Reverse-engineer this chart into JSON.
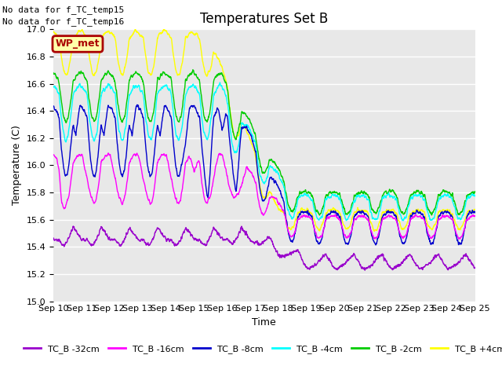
{
  "title": "Temperatures Set B",
  "xlabel": "Time",
  "ylabel": "Temperature (C)",
  "ylim": [
    15.0,
    17.0
  ],
  "yticks": [
    15.0,
    15.2,
    15.4,
    15.6,
    15.8,
    16.0,
    16.2,
    16.4,
    16.6,
    16.8,
    17.0
  ],
  "x_labels": [
    "Sep 10",
    "Sep 11",
    "Sep 12",
    "Sep 13",
    "Sep 14",
    "Sep 15",
    "Sep 16",
    "Sep 17",
    "Sep 18",
    "Sep 19",
    "Sep 20",
    "Sep 21",
    "Sep 22",
    "Sep 23",
    "Sep 24",
    "Sep 25"
  ],
  "no_data_text": [
    "No data for f_TC_temp15",
    "No data for f_TC_temp16"
  ],
  "wp_met_label": "WP_met",
  "wp_met_box_color": "#aa0000",
  "wp_met_text_color": "#aa0000",
  "wp_met_bg": "#ffffaa",
  "legend_entries": [
    {
      "label": "TC_B -32cm",
      "color": "#9900cc"
    },
    {
      "label": "TC_B -16cm",
      "color": "#ff00ff"
    },
    {
      "label": "TC_B -8cm",
      "color": "#0000cc"
    },
    {
      "label": "TC_B -4cm",
      "color": "#00ffff"
    },
    {
      "label": "TC_B -2cm",
      "color": "#00cc00"
    },
    {
      "label": "TC_B +4cm",
      "color": "#ffff00"
    }
  ],
  "bg_color": "#e8e8e8",
  "line_width": 1.0,
  "grid_color": "#ffffff",
  "title_fontsize": 12,
  "axis_fontsize": 9,
  "tick_fontsize": 8
}
